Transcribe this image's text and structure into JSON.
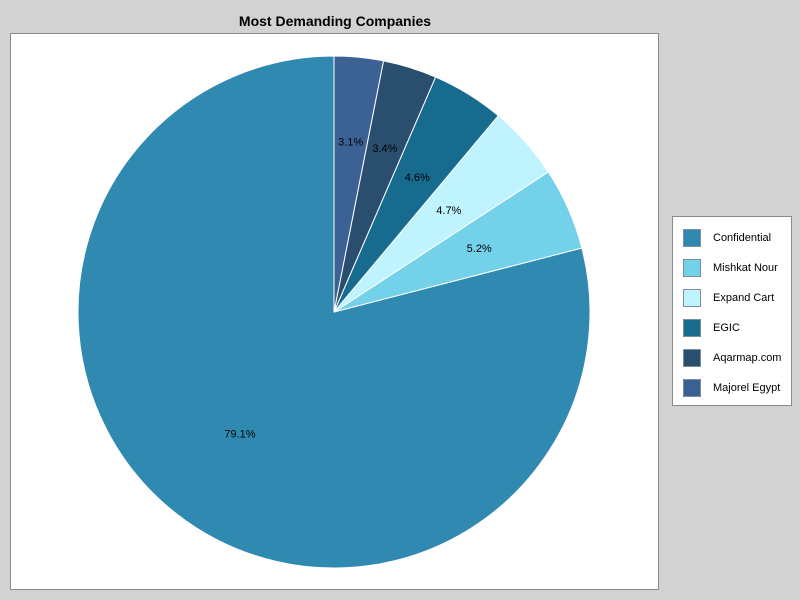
{
  "chart_data": {
    "type": "pie",
    "title": "Most Demanding Companies",
    "legend_position": "right",
    "slices": [
      {
        "name": "Confidential",
        "value": 79.1,
        "label": "79.1%",
        "color": "#2f89b0"
      },
      {
        "name": "Mishkat Nour",
        "value": 5.2,
        "label": "5.2%",
        "color": "#74d1ea"
      },
      {
        "name": "Expand Cart",
        "value": 4.7,
        "label": "4.7%",
        "color": "#bff4ff"
      },
      {
        "name": "EGIC",
        "value": 4.6,
        "label": "4.6%",
        "color": "#176b8e"
      },
      {
        "name": "Aqarmap.com",
        "value": 3.4,
        "label": "3.4%",
        "color": "#2a4e6e"
      },
      {
        "name": "Majorel Egypt",
        "value": 3.1,
        "label": "3.1%",
        "color": "#3c6295"
      }
    ]
  }
}
